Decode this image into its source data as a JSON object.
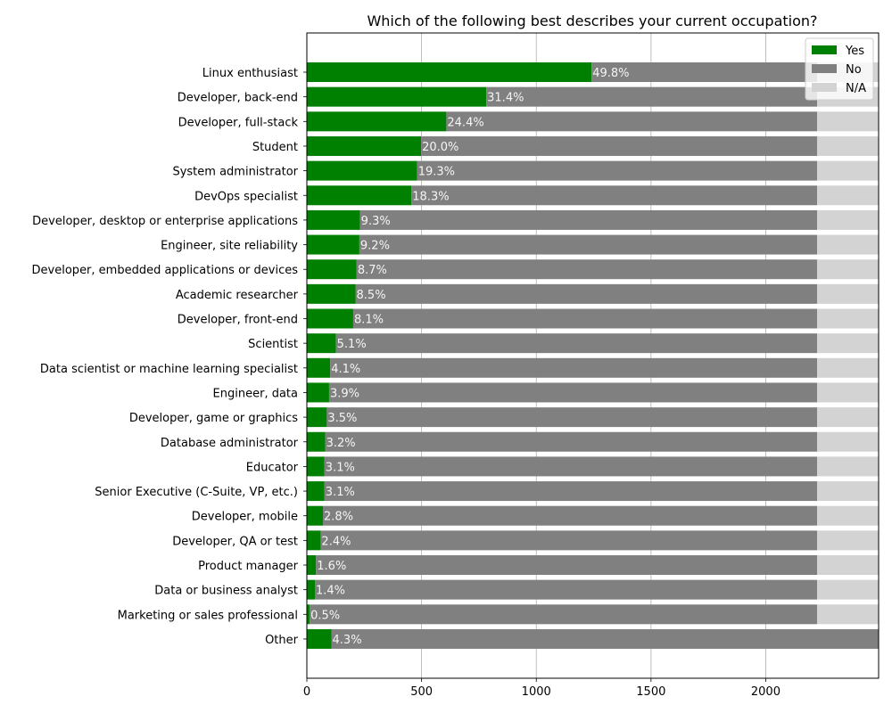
{
  "chart_data": {
    "type": "bar",
    "orientation": "horizontal",
    "stacked": true,
    "title": "Which of the following best describes your current occupation?",
    "xlabel": "",
    "ylabel": "",
    "xlim": [
      0,
      2492
    ],
    "xticks": [
      0,
      500,
      1000,
      1500,
      2000
    ],
    "grid": "x",
    "legend": {
      "placement": "top-right",
      "entries": [
        "Yes",
        "No",
        "N/A"
      ]
    },
    "colors": {
      "Yes": "#008000",
      "No": "#808080",
      "N/A": "#d3d3d3"
    },
    "total_respondents": 2492,
    "categories": [
      "Linux enthusiast",
      "Developer, back-end",
      "Developer, full-stack",
      "Student",
      "System administrator",
      "DevOps specialist",
      "Developer, desktop or enterprise applications",
      "Engineer, site reliability",
      "Developer, embedded applications or devices",
      "Academic researcher",
      "Developer, front-end",
      "Scientist",
      "Data scientist or machine learning specialist",
      "Engineer, data",
      "Developer, game or graphics",
      "Database administrator",
      "Educator",
      "Senior Executive (C-Suite, VP, etc.)",
      "Developer, mobile",
      "Developer, QA or test",
      "Product manager",
      "Data or business analyst",
      "Marketing or sales professional",
      "Other"
    ],
    "series": [
      {
        "name": "Yes",
        "values": [
          1241,
          782,
          608,
          498,
          481,
          456,
          232,
          229,
          217,
          212,
          202,
          127,
          102,
          97,
          87,
          80,
          77,
          77,
          70,
          60,
          40,
          35,
          12,
          107
        ]
      },
      {
        "name": "No",
        "values": [
          983,
          1442,
          1616,
          1726,
          1743,
          1768,
          1992,
          1995,
          2007,
          2012,
          2022,
          2097,
          2122,
          2127,
          2137,
          2144,
          2147,
          2147,
          2154,
          2164,
          2184,
          2189,
          2212,
          2385
        ]
      },
      {
        "name": "N/A",
        "values": [
          268,
          268,
          268,
          268,
          268,
          268,
          268,
          268,
          268,
          268,
          268,
          268,
          268,
          268,
          268,
          268,
          268,
          268,
          268,
          268,
          268,
          268,
          268,
          0
        ]
      }
    ],
    "data_labels": [
      "49.8%",
      "31.4%",
      "24.4%",
      "20.0%",
      "19.3%",
      "18.3%",
      "9.3%",
      "9.2%",
      "8.7%",
      "8.5%",
      "8.1%",
      "5.1%",
      "4.1%",
      "3.9%",
      "3.5%",
      "3.2%",
      "3.1%",
      "3.1%",
      "2.8%",
      "2.4%",
      "1.6%",
      "1.4%",
      "0.5%",
      "4.3%"
    ]
  }
}
